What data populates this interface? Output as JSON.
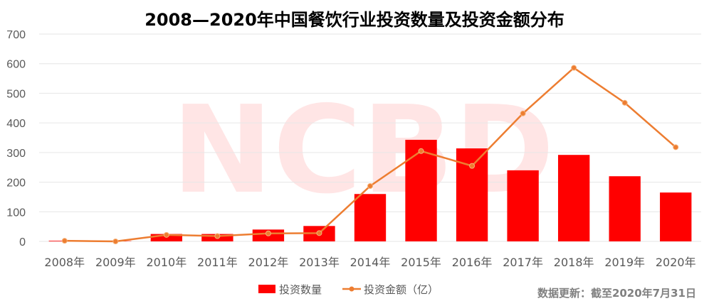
{
  "colors": {
    "bar": "#ff0000",
    "line": "#ed7d31",
    "grid": "#e6e6e6",
    "watermark": "#ffd0d0"
  },
  "footnote": "数据更新：截至2020年7月31日",
  "chart_data": {
    "type": "bar",
    "title": "2008—2020年中国餐饮行业投资数量及投资金额分布",
    "categories": [
      "2008年",
      "2009年",
      "2010年",
      "2011年",
      "2012年",
      "2013年",
      "2014年",
      "2015年",
      "2016年",
      "2017年",
      "2018年",
      "2019年",
      "2020年"
    ],
    "series": [
      {
        "name": "投资数量",
        "type": "bar",
        "values": [
          2,
          1,
          25,
          25,
          40,
          52,
          160,
          343,
          314,
          240,
          292,
          220,
          165
        ]
      },
      {
        "name": "投资金额（亿）",
        "type": "line",
        "values": [
          2,
          0,
          22,
          18,
          27,
          28,
          187,
          305,
          255,
          432,
          586,
          468,
          318
        ]
      }
    ],
    "ylim": [
      0,
      700
    ],
    "yticks": [
      0,
      100,
      200,
      300,
      400,
      500,
      600,
      700
    ],
    "grid": true,
    "legend_position": "bottom"
  }
}
